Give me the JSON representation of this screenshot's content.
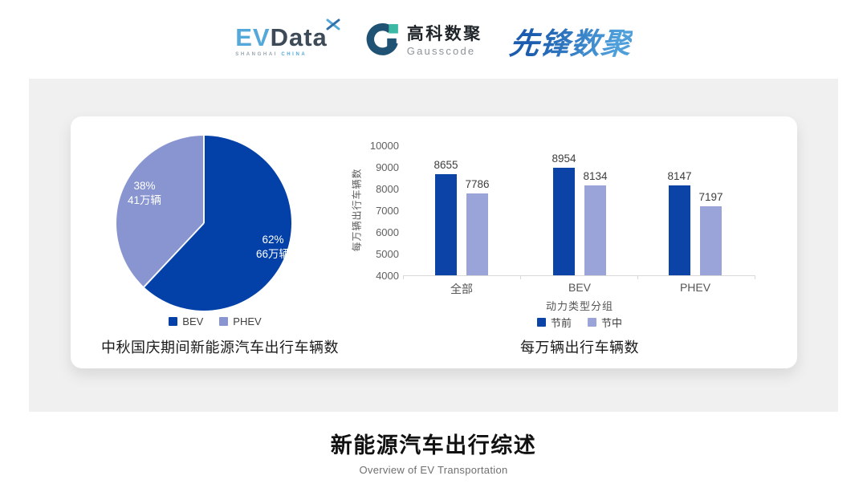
{
  "header": {
    "evdata": {
      "ev": "EV",
      "data": "Data",
      "sub_left": "SHANGHAI",
      "sub_right": "CHINA"
    },
    "gausscode": {
      "cn": "高科数聚",
      "en": "Gausscode"
    },
    "pioneer": "先锋数聚"
  },
  "footer": {
    "title": "新能源汽车出行综述",
    "subtitle": "Overview of EV Transportation"
  },
  "colors": {
    "panel_gray": "#f0f0f0",
    "dark_blue": "#0b43a7",
    "light_blue": "#97a1d5",
    "logo_blue": "#54a8da",
    "logo_dark": "#3d4a57",
    "gauss_navy": "#1f5273",
    "gauss_teal": "#3bb9a5"
  },
  "chart_data": [
    {
      "type": "pie",
      "title": "中秋国庆期间新能源汽车出行车辆数",
      "start": "top-clockwise",
      "slices": [
        {
          "label": "BEV",
          "percent": 62,
          "percent_label": "62%",
          "value_label": "66万辆",
          "color": "#0341a8"
        },
        {
          "label": "PHEV",
          "percent": 38,
          "percent_label": "38%",
          "value_label": "41万辆",
          "color": "#8995d0"
        }
      ],
      "legend_position": "bottom"
    },
    {
      "type": "bar",
      "title": "每万辆出行车辆数",
      "categories": [
        "全部",
        "BEV",
        "PHEV"
      ],
      "series": [
        {
          "name": "节前",
          "color": "#0b43a7",
          "values": [
            8655,
            8954,
            8147
          ]
        },
        {
          "name": "节中",
          "color": "#9aa4d8",
          "values": [
            7786,
            8134,
            7197
          ]
        }
      ],
      "xlabel": "动力类型分组",
      "ylabel": "每万辆出行车辆数",
      "ylim": [
        4000,
        10000
      ],
      "ytick_step": 1000,
      "grid": false,
      "legend_position": "bottom"
    }
  ]
}
